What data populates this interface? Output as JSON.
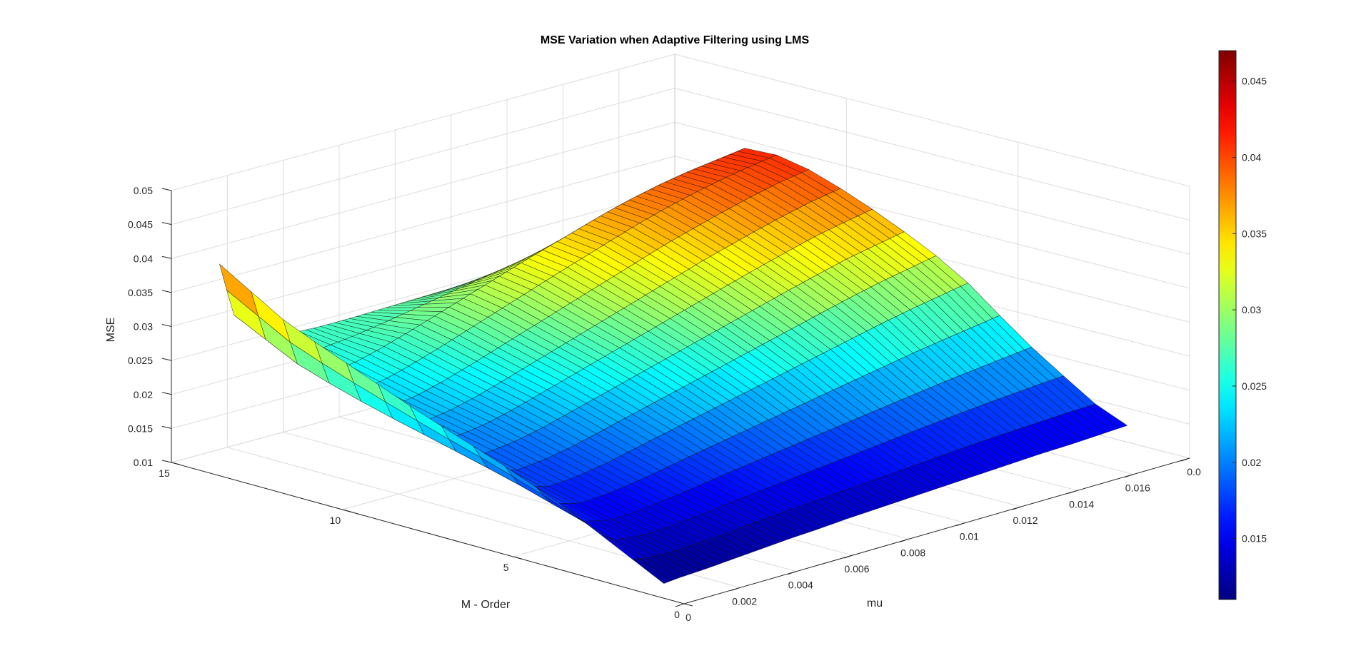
{
  "chart_data": {
    "type": "surface",
    "title": "MSE Variation when Adaptive Filtering using LMS",
    "xlabel": "mu",
    "ylabel": "M - Order",
    "zlabel": "MSE",
    "xlim": [
      0,
      0.018
    ],
    "ylim": [
      0,
      15
    ],
    "zlim": [
      0.01,
      0.05
    ],
    "grid": true,
    "colormap": "jet",
    "colorbar": {
      "placement": "right",
      "range": [
        0.011,
        0.047
      ],
      "ticks": [
        "0.015",
        "0.02",
        "0.025",
        "0.03",
        "0.035",
        "0.04",
        "0.045"
      ]
    },
    "x_ticks": [
      "0",
      "0.002",
      "0.004",
      "0.006",
      "0.008",
      "0.01",
      "0.012",
      "0.014",
      "0.016",
      "0.0"
    ],
    "y_ticks": [
      "0",
      "5",
      "10",
      "15"
    ],
    "z_ticks": [
      "0.01",
      "0.015",
      "0.02",
      "0.025",
      "0.03",
      "0.035",
      "0.04",
      "0.045",
      "0.05"
    ],
    "mu_values": [
      0.0005,
      0.001,
      0.002,
      0.003,
      0.004,
      0.005,
      0.006,
      0.007,
      0.008,
      0.009,
      0.01,
      0.011,
      0.012,
      0.013,
      0.014,
      0.015,
      0.016,
      0.017
    ],
    "order_values": [
      1,
      2,
      4,
      6,
      8,
      10,
      12,
      14
    ],
    "mse": [
      [
        0.011,
        0.0112,
        0.0114,
        0.0117,
        0.012,
        0.0123,
        0.0125,
        0.0128,
        0.013,
        0.0132,
        0.0134,
        0.0136,
        0.0138,
        0.014,
        0.0142,
        0.0143,
        0.0145,
        0.0147
      ],
      [
        0.0135,
        0.013,
        0.0128,
        0.013,
        0.0133,
        0.0137,
        0.014,
        0.0143,
        0.0146,
        0.0149,
        0.0152,
        0.0155,
        0.0158,
        0.0161,
        0.0163,
        0.0165,
        0.0167,
        0.0168
      ],
      [
        0.0185,
        0.016,
        0.015,
        0.0152,
        0.0157,
        0.0163,
        0.017,
        0.0176,
        0.0182,
        0.0188,
        0.0194,
        0.02,
        0.0206,
        0.0212,
        0.0218,
        0.0223,
        0.0228,
        0.0233
      ],
      [
        0.0225,
        0.019,
        0.0175,
        0.0178,
        0.0185,
        0.0195,
        0.0205,
        0.0215,
        0.0225,
        0.0235,
        0.0245,
        0.0255,
        0.0265,
        0.0275,
        0.0285,
        0.0294,
        0.0302,
        0.031
      ],
      [
        0.026,
        0.0215,
        0.02,
        0.0205,
        0.0214,
        0.0226,
        0.0238,
        0.025,
        0.0262,
        0.0274,
        0.0286,
        0.0298,
        0.031,
        0.0322,
        0.0333,
        0.0344,
        0.0352,
        0.036
      ],
      [
        0.03,
        0.024,
        0.022,
        0.0226,
        0.0237,
        0.025,
        0.0264,
        0.0278,
        0.0292,
        0.0306,
        0.032,
        0.0334,
        0.0348,
        0.036,
        0.0372,
        0.0383,
        0.0393,
        0.04
      ],
      [
        0.034,
        0.027,
        0.0245,
        0.025,
        0.0262,
        0.0276,
        0.0291,
        0.0306,
        0.0321,
        0.0336,
        0.035,
        0.0364,
        0.0378,
        0.039,
        0.04,
        0.0408,
        0.0414,
        0.042
      ],
      [
        0.04,
        0.032,
        0.028,
        0.027,
        0.0268,
        0.0268,
        0.0269,
        0.027,
        0.0271,
        0.0272,
        0.0273,
        0.0274,
        0.0275,
        0.0276,
        0.0277,
        0.0278,
        0.0279,
        0.028
      ]
    ]
  }
}
